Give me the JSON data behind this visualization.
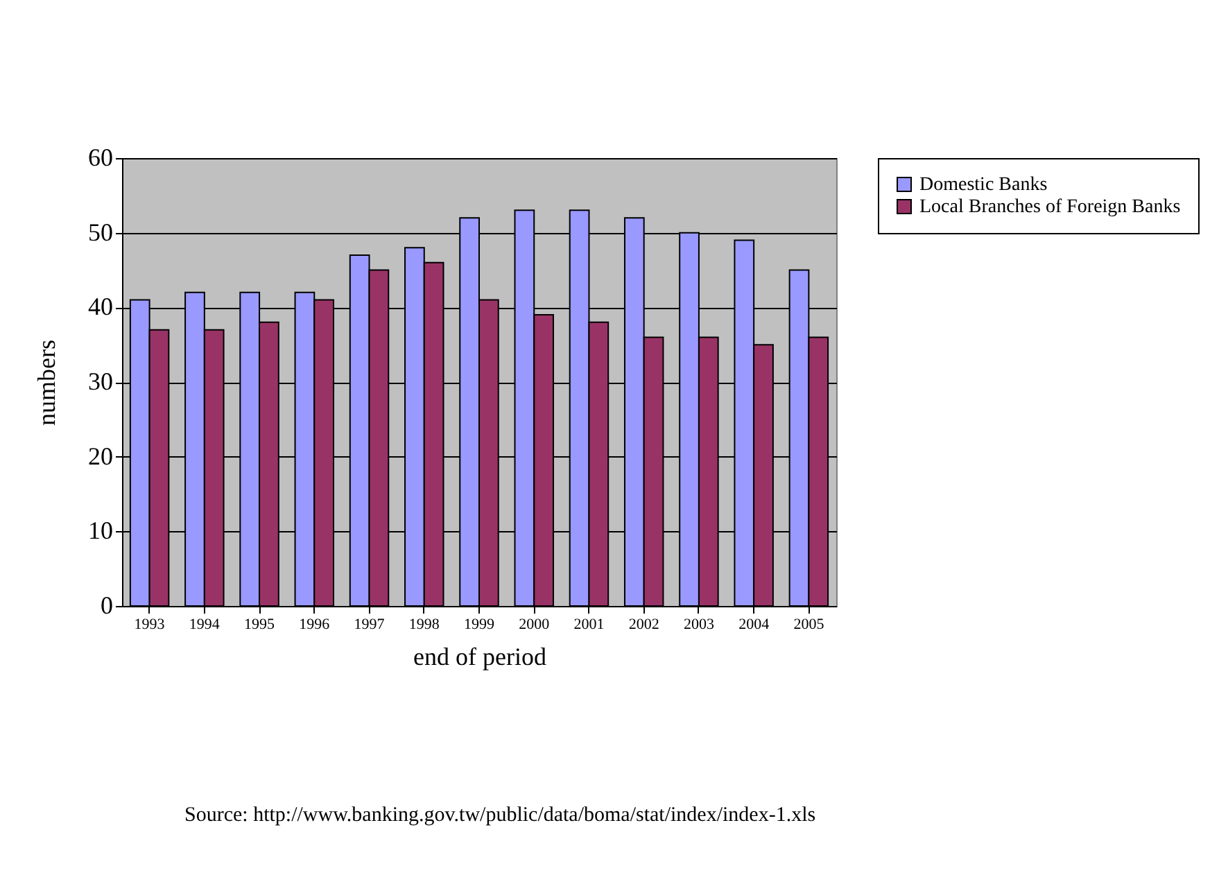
{
  "chart_data": {
    "type": "bar",
    "xlabel": "end of period",
    "ylabel": "numbers",
    "categories": [
      "1993",
      "1994",
      "1995",
      "1996",
      "1997",
      "1998",
      "1999",
      "2000",
      "2001",
      "2002",
      "2003",
      "2004",
      "2005"
    ],
    "series": [
      {
        "name": "Domestic Banks",
        "color": "#9999ff",
        "values": [
          41,
          42,
          42,
          42,
          47,
          48,
          52,
          53,
          53,
          52,
          50,
          49,
          45
        ]
      },
      {
        "name": "Local Branches of Foreign Banks",
        "color": "#993366",
        "values": [
          37,
          37,
          38,
          41,
          45,
          46,
          41,
          39,
          38,
          36,
          36,
          35,
          36
        ]
      }
    ],
    "ylim": [
      0,
      60
    ],
    "yticks": [
      0,
      10,
      20,
      30,
      40,
      50,
      60
    ],
    "grid": "y",
    "legend": "right",
    "annotations": [
      "Source: http://www.banking.gov.tw/public/data/boma/stat/index/index-1.xls"
    ]
  }
}
